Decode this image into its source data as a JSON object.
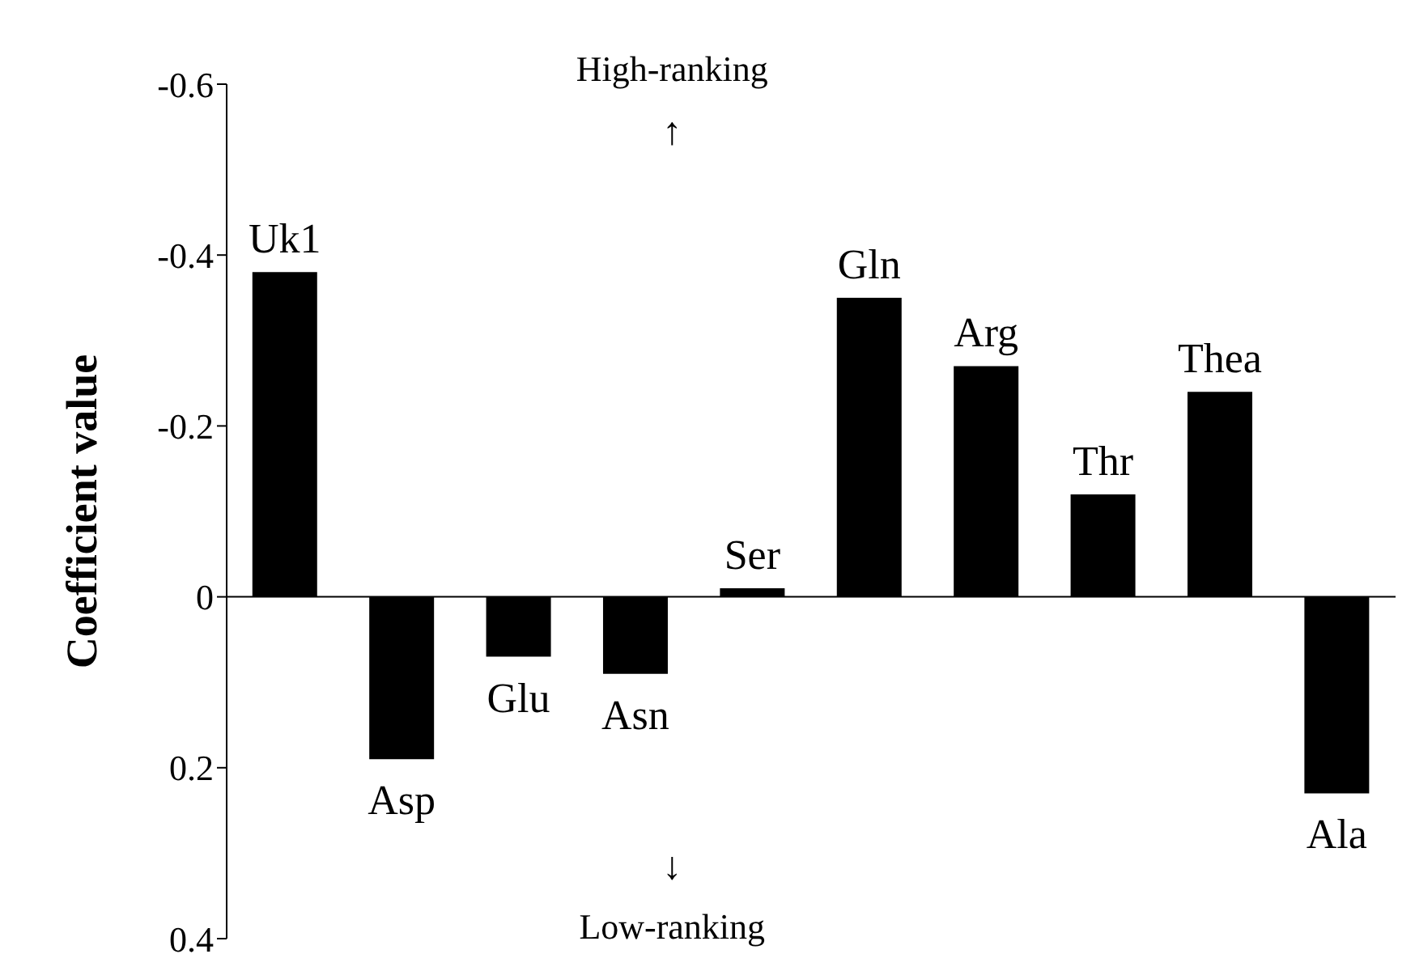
{
  "chart_data": {
    "type": "bar",
    "ylabel": "Coefficient value",
    "categories": [
      "Uk1",
      "Asp",
      "Glu",
      "Asn",
      "Ser",
      "Gln",
      "Arg",
      "Thr",
      "Thea",
      "Ala"
    ],
    "values": [
      -0.38,
      0.19,
      0.07,
      0.09,
      -0.01,
      -0.35,
      -0.27,
      -0.12,
      -0.24,
      0.23
    ],
    "color": "#000000",
    "ylim": [
      0.4,
      -0.6
    ],
    "yticks": [
      0.4,
      0.2,
      0,
      -0.2,
      -0.4,
      -0.6
    ],
    "ref_lines": [
      {
        "axis": "y",
        "value": 0,
        "color": "#000000"
      }
    ],
    "annotations": [
      "High-ranking",
      "↑",
      "↓",
      "Low-ranking"
    ],
    "grid": false,
    "legend": false
  }
}
